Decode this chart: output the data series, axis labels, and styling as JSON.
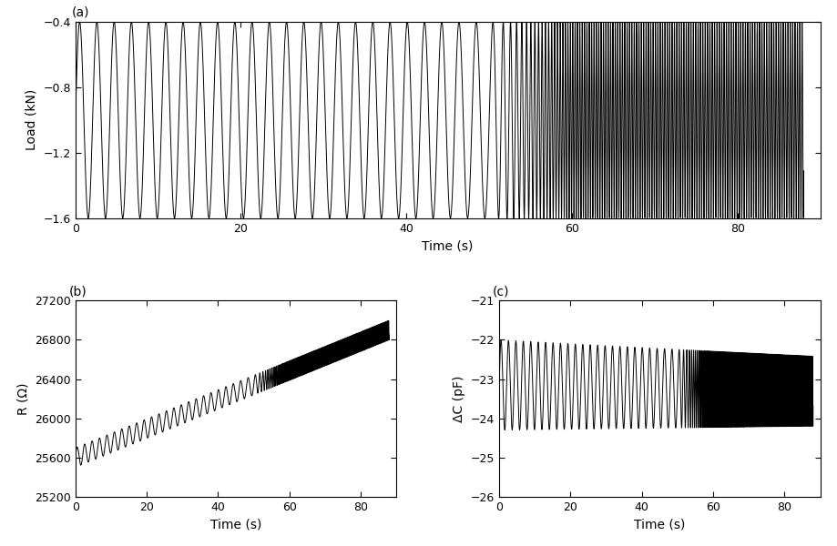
{
  "panel_a": {
    "xlabel": "Time (s)",
    "ylabel": "Load (kN)",
    "xlim": [
      0,
      90
    ],
    "ylim": [
      -1.6,
      -0.4
    ],
    "yticks": [
      -1.6,
      -1.2,
      -0.8,
      -0.4
    ],
    "xticks": [
      0,
      20,
      40,
      60,
      80
    ],
    "label": "(a)",
    "t_end": 88,
    "amp": 0.6,
    "mean": -1.0,
    "f_slow": 0.48,
    "f_fast": 3.5,
    "switch_time": 50,
    "n_points": 10000
  },
  "panel_b": {
    "xlabel": "Time (s)",
    "ylabel": "R (Ω)",
    "xlim": [
      0,
      90
    ],
    "ylim": [
      25200,
      27200
    ],
    "yticks": [
      25200,
      25600,
      26000,
      26400,
      26800,
      27200
    ],
    "xticks": [
      0,
      20,
      40,
      60,
      80
    ],
    "label": "(b)",
    "t_end": 88,
    "R_start": 25600,
    "R_end": 26900,
    "amp": 100,
    "f_slow": 0.48,
    "f_fast": 3.5,
    "switch_time": 50,
    "n_points": 10000
  },
  "panel_c": {
    "xlabel": "Time (s)",
    "ylabel": "ΔC (pF)",
    "xlim": [
      0,
      90
    ],
    "ylim": [
      -26,
      -21
    ],
    "yticks": [
      -26,
      -25,
      -24,
      -23,
      -22,
      -21
    ],
    "xticks": [
      0,
      20,
      40,
      60,
      80
    ],
    "label": "(c)",
    "t_end": 88,
    "mean": -23.15,
    "amp_start": 1.15,
    "amp_end": 1.05,
    "upper_drop": 0.3,
    "f_slow": 0.48,
    "f_fast": 3.5,
    "switch_time": 50,
    "n_points": 10000
  },
  "line_color": "#000000",
  "line_width": 0.7,
  "label_fontsize": 10,
  "tick_fontsize": 9
}
